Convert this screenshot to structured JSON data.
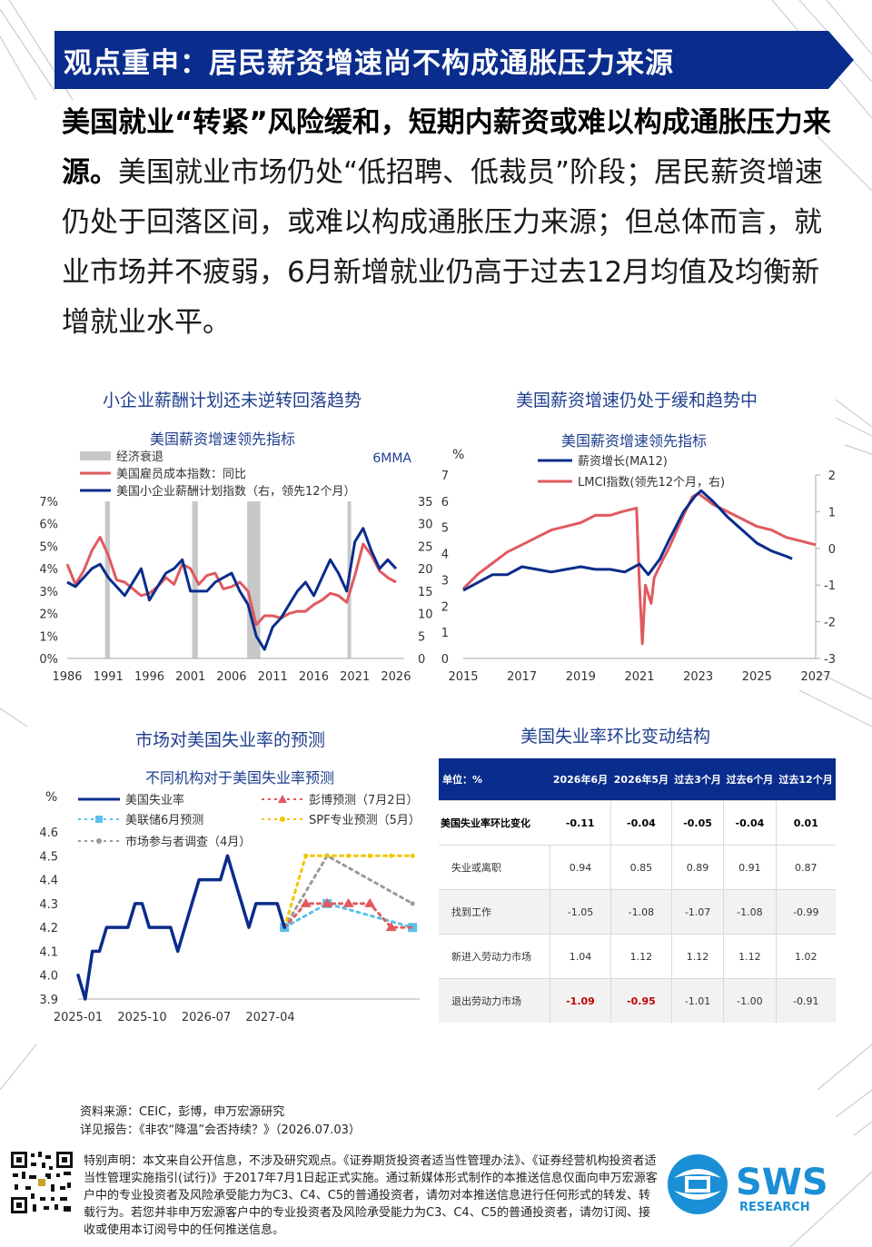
{
  "header": {
    "title": "观点重申：居民薪资增速尚不构成通胀压力来源"
  },
  "intro": {
    "bold": "美国就业“转紧”风险缓和，短期内薪资或难以构成通胀压力来源。",
    "text": "美国就业市场仍处“低招聘、低裁员”阶段；居民薪资增速仍处于回落区间，或难以构成通胀压力来源；但总体而言，就业市场并不疲弱，6月新增就业仍高于过去12月均值及均衡新增就业水平。"
  },
  "chart_titles": {
    "c1": "小企业薪酬计划还未逆转回落趋势",
    "c2": "美国薪资增速仍处于缓和趋势中",
    "c3": "市场对美国失业率的预测",
    "c4": "美国失业率环比变动结构"
  },
  "chart_data": [
    {
      "type": "line",
      "title": "美国薪资增速领先指标",
      "right_note": "6MMA",
      "legend": [
        "经济衰退",
        "美国雇员成本指数：同比",
        "美国小企业薪酬计划指数（右，领先12个月）"
      ],
      "x_ticks": [
        "1986",
        "1991",
        "1996",
        "2001",
        "2006",
        "2011",
        "2016",
        "2021",
        "2026"
      ],
      "xlim": [
        1986,
        2027
      ],
      "y_left_ticks": [
        "0%",
        "1%",
        "2%",
        "3%",
        "4%",
        "5%",
        "6%",
        "7%"
      ],
      "y_left_lim": [
        0,
        7
      ],
      "y_right_ticks": [
        "0",
        "5",
        "10",
        "15",
        "20",
        "25",
        "30",
        "35"
      ],
      "y_right_lim": [
        0,
        35
      ],
      "recessions": [
        [
          1990.6,
          1991.2
        ],
        [
          2001.2,
          2001.9
        ],
        [
          2007.9,
          2009.5
        ],
        [
          2020.1,
          2020.4
        ]
      ],
      "series": [
        {
          "name": "美国雇员成本指数：同比",
          "color": "#e05a5f",
          "axis": "left",
          "points": [
            [
              1986,
              4.2
            ],
            [
              1987,
              3.3
            ],
            [
              1988,
              3.9
            ],
            [
              1989,
              4.8
            ],
            [
              1990,
              5.4
            ],
            [
              1991,
              4.6
            ],
            [
              1992,
              3.5
            ],
            [
              1993,
              3.4
            ],
            [
              1994,
              3.1
            ],
            [
              1995,
              2.8
            ],
            [
              1996,
              2.9
            ],
            [
              1997,
              3.2
            ],
            [
              1998,
              3.6
            ],
            [
              1999,
              3.3
            ],
            [
              2000,
              4.2
            ],
            [
              2001,
              4.0
            ],
            [
              2002,
              3.3
            ],
            [
              2003,
              3.7
            ],
            [
              2004,
              3.8
            ],
            [
              2005,
              3.1
            ],
            [
              2006,
              3.2
            ],
            [
              2007,
              3.4
            ],
            [
              2008,
              3.0
            ],
            [
              2009,
              1.5
            ],
            [
              2010,
              1.9
            ],
            [
              2011,
              1.9
            ],
            [
              2012,
              1.8
            ],
            [
              2013,
              2.0
            ],
            [
              2014,
              2.1
            ],
            [
              2015,
              2.1
            ],
            [
              2016,
              2.4
            ],
            [
              2017,
              2.6
            ],
            [
              2018,
              2.9
            ],
            [
              2019,
              2.8
            ],
            [
              2020,
              2.5
            ],
            [
              2021,
              3.7
            ],
            [
              2022,
              5.1
            ],
            [
              2023,
              4.6
            ],
            [
              2024,
              3.9
            ],
            [
              2025,
              3.6
            ],
            [
              2026,
              3.4
            ]
          ]
        },
        {
          "name": "美国小企业薪酬计划指数（右，领先12个月）",
          "color": "#0a2c8c",
          "axis": "right",
          "points": [
            [
              1986,
              17
            ],
            [
              1987,
              16
            ],
            [
              1988,
              18
            ],
            [
              1989,
              20
            ],
            [
              1990,
              21
            ],
            [
              1991,
              18
            ],
            [
              1992,
              16
            ],
            [
              1993,
              14
            ],
            [
              1994,
              17
            ],
            [
              1995,
              20
            ],
            [
              1996,
              13
            ],
            [
              1997,
              16
            ],
            [
              1998,
              19
            ],
            [
              1999,
              20
            ],
            [
              2000,
              22
            ],
            [
              2001,
              15
            ],
            [
              2002,
              15
            ],
            [
              2003,
              15
            ],
            [
              2004,
              17
            ],
            [
              2005,
              18
            ],
            [
              2006,
              19
            ],
            [
              2007,
              15
            ],
            [
              2008,
              12
            ],
            [
              2009,
              5
            ],
            [
              2010,
              2
            ],
            [
              2011,
              7
            ],
            [
              2012,
              9
            ],
            [
              2013,
              12
            ],
            [
              2014,
              15
            ],
            [
              2015,
              17
            ],
            [
              2016,
              14
            ],
            [
              2017,
              18
            ],
            [
              2018,
              22
            ],
            [
              2019,
              19
            ],
            [
              2020,
              15
            ],
            [
              2021,
              26
            ],
            [
              2022,
              29
            ],
            [
              2023,
              24
            ],
            [
              2024,
              20
            ],
            [
              2025,
              22
            ],
            [
              2026,
              20
            ]
          ]
        }
      ]
    },
    {
      "type": "line",
      "title": "美国薪资增速领先指标",
      "left_unit": "%",
      "legend": [
        "薪资增长(MA12)",
        "LMCI指数(领先12个月，右)"
      ],
      "x_ticks": [
        "2015",
        "2017",
        "2019",
        "2021",
        "2023",
        "2025",
        "2027"
      ],
      "xlim": [
        2015,
        2027
      ],
      "y_left_ticks": [
        "0",
        "1",
        "2",
        "3",
        "4",
        "5",
        "6",
        "7"
      ],
      "y_left_lim": [
        0,
        7
      ],
      "y_right_ticks": [
        "-3",
        "-2",
        "-1",
        "0",
        "1",
        "2"
      ],
      "y_right_lim": [
        -3,
        2
      ],
      "series": [
        {
          "name": "薪资增长(MA12)",
          "color": "#0a2c8c",
          "axis": "left",
          "points": [
            [
              2015,
              2.6
            ],
            [
              2015.5,
              2.9
            ],
            [
              2016,
              3.2
            ],
            [
              2016.5,
              3.2
            ],
            [
              2017,
              3.5
            ],
            [
              2017.5,
              3.4
            ],
            [
              2018,
              3.3
            ],
            [
              2018.5,
              3.4
            ],
            [
              2019,
              3.5
            ],
            [
              2019.5,
              3.4
            ],
            [
              2020,
              3.4
            ],
            [
              2020.5,
              3.3
            ],
            [
              2021,
              3.6
            ],
            [
              2021.3,
              3.2
            ],
            [
              2021.7,
              3.8
            ],
            [
              2022,
              4.5
            ],
            [
              2022.5,
              5.6
            ],
            [
              2022.9,
              6.2
            ],
            [
              2023.1,
              6.4
            ],
            [
              2023.5,
              6.0
            ],
            [
              2024,
              5.4
            ],
            [
              2024.5,
              4.9
            ],
            [
              2025,
              4.4
            ],
            [
              2025.5,
              4.1
            ],
            [
              2026,
              3.9
            ],
            [
              2026.2,
              3.8
            ]
          ]
        },
        {
          "name": "LMCI指数(领先12个月，右)",
          "color": "#e05a5f",
          "axis": "right",
          "points": [
            [
              2015,
              -1.1
            ],
            [
              2015.5,
              -0.7
            ],
            [
              2016,
              -0.4
            ],
            [
              2016.5,
              -0.1
            ],
            [
              2017,
              0.1
            ],
            [
              2017.5,
              0.3
            ],
            [
              2018,
              0.5
            ],
            [
              2018.5,
              0.6
            ],
            [
              2019,
              0.7
            ],
            [
              2019.5,
              0.9
            ],
            [
              2020,
              0.9
            ],
            [
              2020.4,
              1.0
            ],
            [
              2020.9,
              1.1
            ],
            [
              2021,
              -1.0
            ],
            [
              2021.1,
              -2.6
            ],
            [
              2021.2,
              -1.0
            ],
            [
              2021.4,
              -1.5
            ],
            [
              2021.5,
              -0.8
            ],
            [
              2021.8,
              -0.3
            ],
            [
              2022,
              0
            ],
            [
              2022.5,
              0.9
            ],
            [
              2022.8,
              1.4
            ],
            [
              2023,
              1.5
            ],
            [
              2023.5,
              1.2
            ],
            [
              2024,
              1.0
            ],
            [
              2024.5,
              0.8
            ],
            [
              2025,
              0.6
            ],
            [
              2025.5,
              0.5
            ],
            [
              2026,
              0.3
            ],
            [
              2026.5,
              0.2
            ],
            [
              2027,
              0.1
            ]
          ]
        }
      ]
    },
    {
      "type": "line",
      "title": "不同机构对于美国失业率预测",
      "left_unit": "%",
      "legend": [
        "美国失业率",
        "彭博预测（7月2日）",
        "美联储6月预测",
        "SPF专业预测（5月）",
        "市场参与者调查（4月）"
      ],
      "x_ticks": [
        "2025-01",
        "2025-10",
        "2026-07",
        "2027-04"
      ],
      "y_ticks": [
        "3.9",
        "4.0",
        "4.1",
        "4.2",
        "4.3",
        "4.4",
        "4.5",
        "4.6"
      ],
      "ylim": [
        3.9,
        4.6
      ],
      "series": [
        {
          "name": "美国失业率",
          "color": "#0a2c8c",
          "points": [
            [
              0,
              4.0
            ],
            [
              1,
              3.9
            ],
            [
              2,
              4.1
            ],
            [
              3,
              4.1
            ],
            [
              4,
              4.2
            ],
            [
              5,
              4.2
            ],
            [
              6,
              4.2
            ],
            [
              7,
              4.2
            ],
            [
              8,
              4.3
            ],
            [
              9,
              4.3
            ],
            [
              10,
              4.2
            ],
            [
              11,
              4.2
            ],
            [
              12,
              4.2
            ],
            [
              13,
              4.2
            ],
            [
              14,
              4.1
            ],
            [
              15,
              4.2
            ],
            [
              16,
              4.3
            ],
            [
              17,
              4.4
            ],
            [
              18,
              4.4
            ],
            [
              19,
              4.4
            ],
            [
              20,
              4.4
            ],
            [
              21,
              4.5
            ],
            [
              22,
              4.4
            ],
            [
              23,
              4.3
            ],
            [
              24,
              4.2
            ],
            [
              25,
              4.3
            ],
            [
              26,
              4.3
            ],
            [
              27,
              4.3
            ],
            [
              28,
              4.3
            ],
            [
              29,
              4.2
            ]
          ]
        },
        {
          "name": "彭博预测（7月2日）",
          "color": "#e05a5f",
          "points": [
            [
              29,
              4.2
            ],
            [
              32,
              4.3
            ],
            [
              35,
              4.3
            ],
            [
              38,
              4.3
            ],
            [
              41,
              4.3
            ],
            [
              44,
              4.2
            ],
            [
              47,
              4.2
            ]
          ]
        },
        {
          "name": "美联储6月预测",
          "color": "#5bc0eb",
          "points": [
            [
              29,
              4.2
            ],
            [
              35,
              4.3
            ],
            [
              47,
              4.2
            ]
          ]
        },
        {
          "name": "SPF专业预测（5月）",
          "color": "#f2c500",
          "points": [
            [
              29,
              4.2
            ],
            [
              32,
              4.5
            ],
            [
              35,
              4.5
            ],
            [
              38,
              4.5
            ],
            [
              41,
              4.5
            ],
            [
              44,
              4.5
            ],
            [
              47,
              4.5
            ]
          ]
        },
        {
          "name": "市场参与者调查（4月）",
          "color": "#999999",
          "points": [
            [
              29,
              4.2
            ],
            [
              35,
              4.5
            ],
            [
              47,
              4.3
            ]
          ]
        }
      ]
    },
    {
      "type": "table",
      "unit_label": "单位：%",
      "columns": [
        "2026年6月",
        "2026年5月",
        "过去3个月",
        "过去6个月",
        "过去12个月"
      ],
      "rows": [
        {
          "label": "美国失业率环比变化",
          "values": [
            "-0.11",
            "-0.04",
            "-0.05",
            "-0.04",
            "0.01"
          ]
        },
        {
          "label": "失业或离职",
          "values": [
            "0.94",
            "0.85",
            "0.89",
            "0.91",
            "0.87"
          ]
        },
        {
          "label": "找到工作",
          "values": [
            "-1.05",
            "-1.08",
            "-1.07",
            "-1.08",
            "-0.99"
          ]
        },
        {
          "label": "新进入劳动力市场",
          "values": [
            "1.04",
            "1.12",
            "1.12",
            "1.12",
            "1.02"
          ]
        },
        {
          "label": "退出劳动力市场",
          "values": [
            "-1.09",
            "-0.95",
            "-1.01",
            "-1.00",
            "-0.91"
          ]
        }
      ]
    }
  ],
  "footer": {
    "source": "资料来源：CEIC，彭博，申万宏源研究",
    "report": "详见报告：《非农“降温”会否持续？》（2026.07.03）",
    "disclaimer": "特别声明：本文来自公开信息，不涉及研究观点。《证券期货投资者适当性管理办法》、《证券经营机构投资者适当性管理实施指引(试行)》于2017年7月1日起正式实施。通过新媒体形式制作的本推送信息仅面向申万宏源客户中的专业投资者及风险承受能力为C3、C4、C5的普通投资者，请勿对本推送信息进行任何形式的转发、转载行为。若您并非申万宏源客户中的专业投资者及风险承受能力为C3、C4、C5的普通投资者，请勿订阅、接收或使用本订阅号中的任何推送信息。",
    "logo_text": "SWS",
    "logo_sub": "RESEARCH"
  },
  "colors": {
    "navy": "#0a2c8c",
    "red": "#e05a5f",
    "light_blue": "#5bc0eb",
    "gold": "#f2c500",
    "gray": "#999999",
    "logo_blue": "#1a8fd6"
  }
}
